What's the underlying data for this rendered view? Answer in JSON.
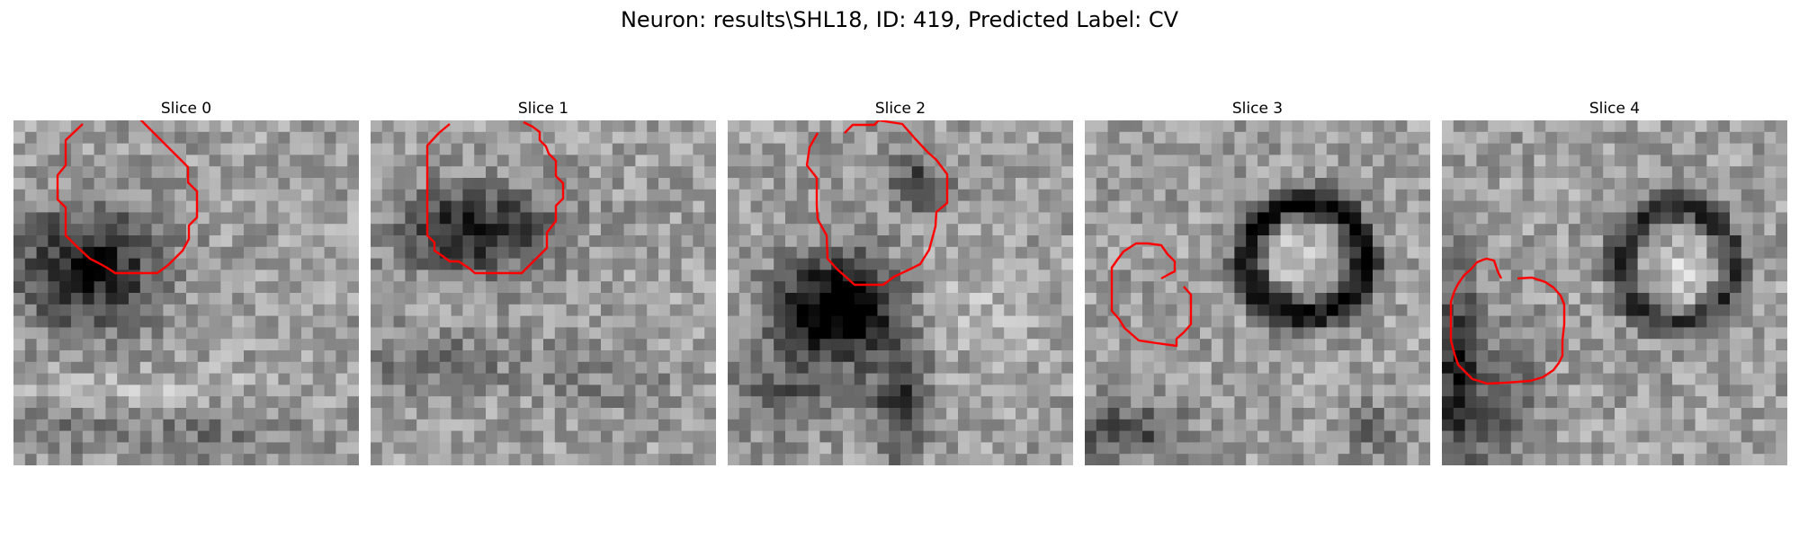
{
  "figure": {
    "title": "Neuron: results\\SHL18, ID: 419, Predicted Label: CV"
  },
  "contour_color": "#ff0000",
  "panels": [
    {
      "title": "Slice 0",
      "contour_icon": "red-contour"
    },
    {
      "title": "Slice 1",
      "contour_icon": "red-contour"
    },
    {
      "title": "Slice 2",
      "contour_icon": "red-contour"
    },
    {
      "title": "Slice 3",
      "contour_icon": "red-contour"
    },
    {
      "title": "Slice 4",
      "contour_icon": "red-contour"
    }
  ]
}
